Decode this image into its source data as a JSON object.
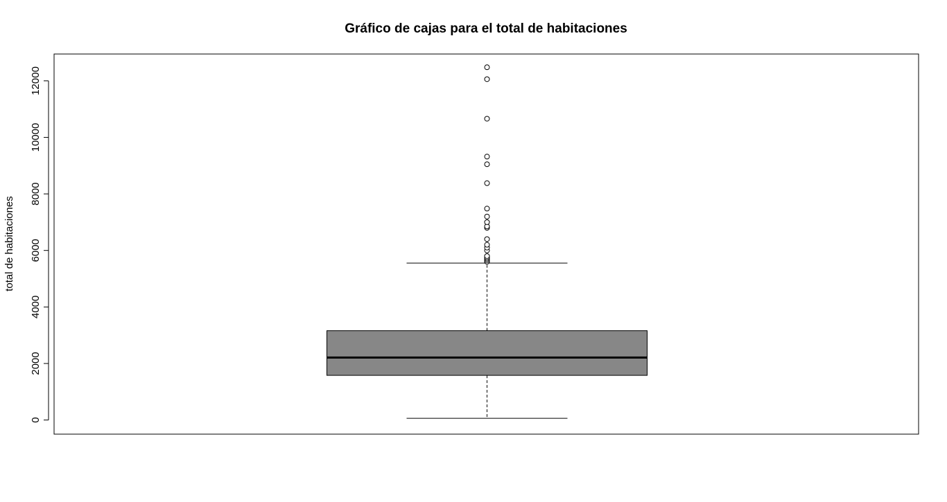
{
  "chart_data": {
    "type": "boxplot",
    "title": "Gráfico de cajas para el total de habitaciones",
    "ylabel": "total de habitaciones",
    "xlabel": "",
    "ylim": [
      -500,
      12950
    ],
    "yticks": [
      0,
      2000,
      4000,
      6000,
      8000,
      10000,
      12000
    ],
    "ytick_labels": [
      "0",
      "2000",
      "4000",
      "6000",
      "8000",
      "10000",
      "12000"
    ],
    "grid": false,
    "box_color": "#878787",
    "box": {
      "whisker_low": 60,
      "q1": 1580,
      "median": 2210,
      "q3": 3160,
      "whisker_high": 5550
    },
    "outliers": [
      5600,
      5650,
      5700,
      5750,
      5800,
      6000,
      6100,
      6200,
      6400,
      6800,
      6850,
      7000,
      7200,
      7480,
      8380,
      9050,
      9320,
      10660,
      12060,
      12480
    ]
  }
}
